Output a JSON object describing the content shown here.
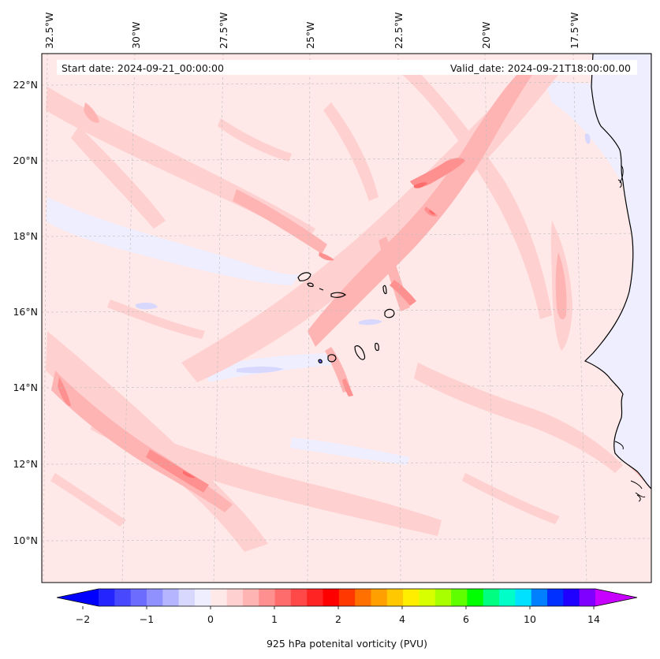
{
  "map": {
    "start_label": "Start date: 2024-09-21_00:00:00",
    "valid_label": "Valid_date: 2024-09-21T18:00:00.00",
    "lon_labels": [
      "32.5°W",
      "30°W",
      "27.5°W",
      "25°W",
      "22.5°W",
      "20°W",
      "17.5°W"
    ],
    "lat_labels": [
      "22°N",
      "20°N",
      "18°N",
      "16°N",
      "14°N",
      "12°N",
      "10°N"
    ],
    "background_color": "#ffe8e8",
    "coast_color": "#000000"
  },
  "colorbar": {
    "label": "925 hPa potenital vorticity (PVU)",
    "tick_labels": [
      "−2",
      "−1",
      "0",
      "1",
      "2",
      "4",
      "6",
      "10",
      "14"
    ],
    "colors": [
      "#0000ff",
      "#2424ff",
      "#4848ff",
      "#6c6cff",
      "#9090ff",
      "#b4b4ff",
      "#d8d8ff",
      "#eeeeff",
      "#ffe8e8",
      "#ffd0d0",
      "#ffb4b4",
      "#ff9090",
      "#ff6c6c",
      "#ff4848",
      "#ff2424",
      "#ff0000",
      "#ff3800",
      "#ff7000",
      "#ffa000",
      "#ffc800",
      "#ffee00",
      "#d8ff00",
      "#a8ff00",
      "#60ff00",
      "#00ff00",
      "#00ff80",
      "#00ffc8",
      "#00e0ff",
      "#0080ff",
      "#0030ff",
      "#2000ff",
      "#8000ff",
      "#c800ff"
    ]
  }
}
